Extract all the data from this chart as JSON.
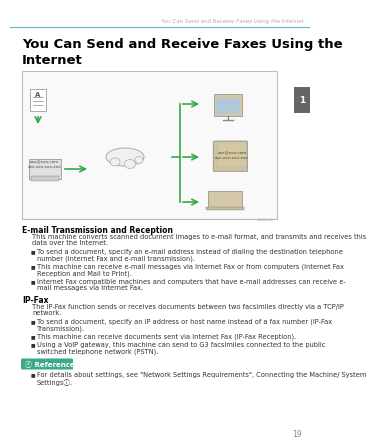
{
  "bg_color": "#ffffff",
  "header_text": "You Can Send and Receive Faxes Using the Internet",
  "header_text_color": "#aaaaaa",
  "header_text_size": 4.0,
  "top_rule_color": "#5bb8d4",
  "tab_color": "#666666",
  "tab_text": "1",
  "title_line1": "You Can Send and Receive Faxes Using the",
  "title_line2": "Internet",
  "title_size": 9.5,
  "title_color": "#000000",
  "section1_header": "E-mail Transmission and Reception",
  "section1_header_size": 5.5,
  "section1_body": "This machine converts scanned document images to e-mail format, and transmits and receives this data over the Internet.",
  "section1_bullets": [
    "To send a document, specify an e-mail address instead of dialing the destination telephone number (Internet Fax and e-mail transmission).",
    "This machine can receive e-mail messages via Internet Fax or from computers (Internet Fax Reception and Mail to Print).",
    "Internet Fax compatible machines and computers that have e-mail addresses can receive e-mail messages via Internet Fax."
  ],
  "section2_header": "IP-Fax",
  "section2_header_size": 5.5,
  "section2_body": "The IP-Fax function sends or receives documents between two facsimiles directly via a TCP/IP network.",
  "section2_bullets": [
    "To send a document, specify an IP address or host name instead of a fax number (IP-Fax Transmission).",
    "This machine can receive documents sent via Internet Fax (IP-Fax Reception).",
    "Using a VoIP gateway, this machine can send to G3 facsimiles connected to the public switched telephone network (PSTN)."
  ],
  "ref_label": "Reference",
  "ref_color": "#ffffff",
  "ref_bg_color": "#3aaa8a",
  "ref_bullet": "For details about settings, see \"Network Settings Requirements\", Connecting the Machine/ System Settingsⓘ.",
  "page_number": "19",
  "body_size": 4.8,
  "body_color": "#333333",
  "image_box_color": "#bbbbbb",
  "arrow_color": "#33aa44"
}
